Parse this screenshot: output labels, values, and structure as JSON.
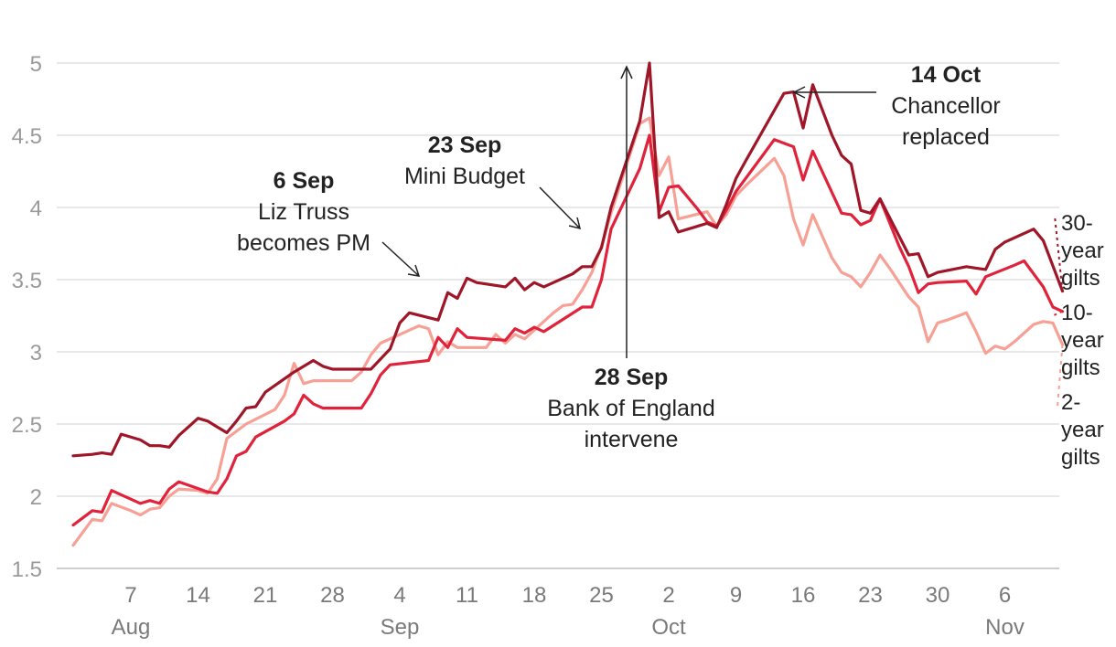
{
  "chart_data": {
    "type": "line",
    "title": "",
    "xlabel": "",
    "ylabel": "",
    "ylim": [
      1.5,
      5
    ],
    "yticks": [
      "1.5",
      "2",
      "2.5",
      "3",
      "3.5",
      "4",
      "4.5",
      "5"
    ],
    "xticks": [
      {
        "day": 7,
        "label": "7",
        "month": "Aug"
      },
      {
        "day": 14,
        "label": "14"
      },
      {
        "day": 21,
        "label": "21"
      },
      {
        "day": 28,
        "label": "28"
      },
      {
        "day": 35,
        "label": "4",
        "month": "Sep"
      },
      {
        "day": 42,
        "label": "11"
      },
      {
        "day": 49,
        "label": "18"
      },
      {
        "day": 56,
        "label": "25"
      },
      {
        "day": 63,
        "label": "2",
        "month": "Oct"
      },
      {
        "day": 70,
        "label": "9"
      },
      {
        "day": 77,
        "label": "16"
      },
      {
        "day": 84,
        "label": "23"
      },
      {
        "day": 91,
        "label": "30"
      },
      {
        "day": 98,
        "label": "6",
        "month": "Nov"
      }
    ],
    "x_note": "x values are days since 31 Jul 2022 (1 = 1 Aug)",
    "series": [
      {
        "name": "30-year gilts",
        "label_lines": [
          "30-",
          "year",
          "gilts"
        ],
        "color": "#9e1627",
        "dash": "3,4",
        "points": [
          [
            1,
            2.28
          ],
          [
            3,
            2.29
          ],
          [
            4,
            2.3
          ],
          [
            5,
            2.29
          ],
          [
            6,
            2.43
          ],
          [
            8,
            2.39
          ],
          [
            9,
            2.35
          ],
          [
            10,
            2.35
          ],
          [
            11,
            2.34
          ],
          [
            12,
            2.42
          ],
          [
            13,
            2.48
          ],
          [
            14,
            2.54
          ],
          [
            15,
            2.52
          ],
          [
            16,
            2.48
          ],
          [
            17,
            2.44
          ],
          [
            18,
            2.52
          ],
          [
            19,
            2.61
          ],
          [
            20,
            2.62
          ],
          [
            21,
            2.72
          ],
          [
            24,
            2.86
          ],
          [
            26,
            2.94
          ],
          [
            27,
            2.9
          ],
          [
            28,
            2.88
          ],
          [
            32,
            2.88
          ],
          [
            34,
            3.02
          ],
          [
            35,
            3.2
          ],
          [
            36,
            3.27
          ],
          [
            39,
            3.22
          ],
          [
            40,
            3.41
          ],
          [
            41,
            3.37
          ],
          [
            42,
            3.51
          ],
          [
            43,
            3.48
          ],
          [
            46,
            3.45
          ],
          [
            47,
            3.51
          ],
          [
            48,
            3.43
          ],
          [
            49,
            3.48
          ],
          [
            50,
            3.45
          ],
          [
            53,
            3.54
          ],
          [
            54,
            3.59
          ],
          [
            55,
            3.59
          ],
          [
            56,
            3.72
          ],
          [
            57,
            4.0
          ],
          [
            60,
            4.6
          ],
          [
            61,
            5.0
          ],
          [
            62,
            3.93
          ],
          [
            63,
            3.97
          ],
          [
            64,
            3.83
          ],
          [
            67,
            3.89
          ],
          [
            68,
            3.86
          ],
          [
            69,
            4.02
          ],
          [
            70,
            4.2
          ],
          [
            71,
            4.32
          ],
          [
            75,
            4.79
          ],
          [
            76,
            4.8
          ],
          [
            77,
            4.55
          ],
          [
            78,
            4.85
          ],
          [
            80,
            4.5
          ],
          [
            81,
            4.36
          ],
          [
            82,
            4.3
          ],
          [
            83,
            3.98
          ],
          [
            84,
            3.96
          ],
          [
            85,
            4.06
          ],
          [
            88,
            3.67
          ],
          [
            89,
            3.68
          ],
          [
            90,
            3.52
          ],
          [
            91,
            3.55
          ],
          [
            94,
            3.59
          ],
          [
            95,
            3.58
          ],
          [
            96,
            3.57
          ],
          [
            97,
            3.71
          ],
          [
            98,
            3.76
          ],
          [
            101,
            3.85
          ],
          [
            102,
            3.77
          ],
          [
            104,
            3.42
          ]
        ]
      },
      {
        "name": "10-year gilts",
        "label_lines": [
          "10-",
          "year",
          "gilts"
        ],
        "color": "#e0233b",
        "dash": "3,4",
        "points": [
          [
            1,
            1.8
          ],
          [
            2,
            1.85
          ],
          [
            3,
            1.9
          ],
          [
            4,
            1.89
          ],
          [
            5,
            2.04
          ],
          [
            7,
            1.98
          ],
          [
            8,
            1.95
          ],
          [
            9,
            1.97
          ],
          [
            10,
            1.95
          ],
          [
            11,
            2.05
          ],
          [
            12,
            2.1
          ],
          [
            15,
            2.03
          ],
          [
            16,
            2.02
          ],
          [
            17,
            2.12
          ],
          [
            18,
            2.28
          ],
          [
            19,
            2.31
          ],
          [
            20,
            2.41
          ],
          [
            23,
            2.52
          ],
          [
            24,
            2.57
          ],
          [
            25,
            2.7
          ],
          [
            26,
            2.64
          ],
          [
            27,
            2.61
          ],
          [
            31,
            2.61
          ],
          [
            32,
            2.71
          ],
          [
            33,
            2.84
          ],
          [
            34,
            2.91
          ],
          [
            38,
            2.94
          ],
          [
            39,
            3.1
          ],
          [
            40,
            3.03
          ],
          [
            41,
            3.16
          ],
          [
            42,
            3.1
          ],
          [
            46,
            3.08
          ],
          [
            47,
            3.16
          ],
          [
            48,
            3.13
          ],
          [
            49,
            3.17
          ],
          [
            50,
            3.14
          ],
          [
            54,
            3.31
          ],
          [
            55,
            3.31
          ],
          [
            56,
            3.5
          ],
          [
            57,
            3.85
          ],
          [
            60,
            4.27
          ],
          [
            61,
            4.5
          ],
          [
            62,
            3.97
          ],
          [
            63,
            4.14
          ],
          [
            64,
            4.15
          ],
          [
            66,
            3.99
          ],
          [
            67,
            3.9
          ],
          [
            68,
            3.87
          ],
          [
            69,
            3.98
          ],
          [
            70,
            4.11
          ],
          [
            71,
            4.2
          ],
          [
            73,
            4.38
          ],
          [
            74,
            4.47
          ],
          [
            76,
            4.42
          ],
          [
            77,
            4.19
          ],
          [
            78,
            4.39
          ],
          [
            81,
            3.96
          ],
          [
            82,
            3.95
          ],
          [
            83,
            3.88
          ],
          [
            84,
            3.91
          ],
          [
            85,
            4.06
          ],
          [
            87,
            3.73
          ],
          [
            88,
            3.59
          ],
          [
            89,
            3.41
          ],
          [
            90,
            3.47
          ],
          [
            91,
            3.48
          ],
          [
            94,
            3.49
          ],
          [
            95,
            3.4
          ],
          [
            96,
            3.52
          ],
          [
            99,
            3.6
          ],
          [
            100,
            3.63
          ],
          [
            102,
            3.45
          ],
          [
            103,
            3.31
          ],
          [
            104,
            3.28
          ]
        ]
      },
      {
        "name": "2-year gilts",
        "label_lines": [
          "2-",
          "year",
          "gilts"
        ],
        "color": "#f6a096",
        "dash": "4,5",
        "points": [
          [
            1,
            1.66
          ],
          [
            3,
            1.84
          ],
          [
            4,
            1.83
          ],
          [
            5,
            1.95
          ],
          [
            7,
            1.9
          ],
          [
            8,
            1.87
          ],
          [
            9,
            1.91
          ],
          [
            10,
            1.92
          ],
          [
            11,
            2.0
          ],
          [
            12,
            2.05
          ],
          [
            14,
            2.04
          ],
          [
            15,
            2.02
          ],
          [
            16,
            2.12
          ],
          [
            17,
            2.4
          ],
          [
            18,
            2.45
          ],
          [
            19,
            2.5
          ],
          [
            22,
            2.6
          ],
          [
            23,
            2.7
          ],
          [
            24,
            2.92
          ],
          [
            25,
            2.78
          ],
          [
            26,
            2.8
          ],
          [
            30,
            2.8
          ],
          [
            31,
            2.86
          ],
          [
            32,
            2.98
          ],
          [
            33,
            3.06
          ],
          [
            36,
            3.15
          ],
          [
            37,
            3.18
          ],
          [
            38,
            3.16
          ],
          [
            39,
            2.98
          ],
          [
            40,
            3.07
          ],
          [
            41,
            3.03
          ],
          [
            44,
            3.03
          ],
          [
            45,
            3.12
          ],
          [
            46,
            3.06
          ],
          [
            47,
            3.12
          ],
          [
            48,
            3.09
          ],
          [
            51,
            3.27
          ],
          [
            52,
            3.32
          ],
          [
            53,
            3.33
          ],
          [
            54,
            3.43
          ],
          [
            55,
            3.55
          ],
          [
            56,
            3.73
          ],
          [
            57,
            3.96
          ],
          [
            60,
            4.58
          ],
          [
            61,
            4.62
          ],
          [
            62,
            4.22
          ],
          [
            63,
            4.35
          ],
          [
            64,
            3.92
          ],
          [
            67,
            3.97
          ],
          [
            68,
            3.87
          ],
          [
            69,
            3.95
          ],
          [
            70,
            4.08
          ],
          [
            71,
            4.15
          ],
          [
            74,
            4.34
          ],
          [
            75,
            4.22
          ],
          [
            76,
            3.92
          ],
          [
            77,
            3.74
          ],
          [
            78,
            3.95
          ],
          [
            80,
            3.65
          ],
          [
            81,
            3.55
          ],
          [
            82,
            3.52
          ],
          [
            83,
            3.45
          ],
          [
            84,
            3.55
          ],
          [
            85,
            3.67
          ],
          [
            86,
            3.58
          ],
          [
            87,
            3.48
          ],
          [
            88,
            3.38
          ],
          [
            89,
            3.31
          ],
          [
            90,
            3.07
          ],
          [
            91,
            3.2
          ],
          [
            92,
            3.22
          ],
          [
            94,
            3.27
          ],
          [
            95,
            3.14
          ],
          [
            96,
            2.99
          ],
          [
            97,
            3.04
          ],
          [
            98,
            3.02
          ],
          [
            99,
            3.07
          ],
          [
            101,
            3.19
          ],
          [
            102,
            3.21
          ],
          [
            103,
            3.2
          ],
          [
            104,
            3.05
          ]
        ]
      }
    ],
    "annotations": [
      {
        "bold": "6 Sep",
        "lines": [
          "Liz Truss",
          "becomes PM"
        ]
      },
      {
        "bold": "23 Sep",
        "lines": [
          "Mini Budget"
        ]
      },
      {
        "bold": "28 Sep",
        "lines": [
          "Bank of England",
          "intervene"
        ]
      },
      {
        "bold": "14 Oct",
        "lines": [
          "Chancellor",
          "replaced"
        ]
      }
    ]
  }
}
